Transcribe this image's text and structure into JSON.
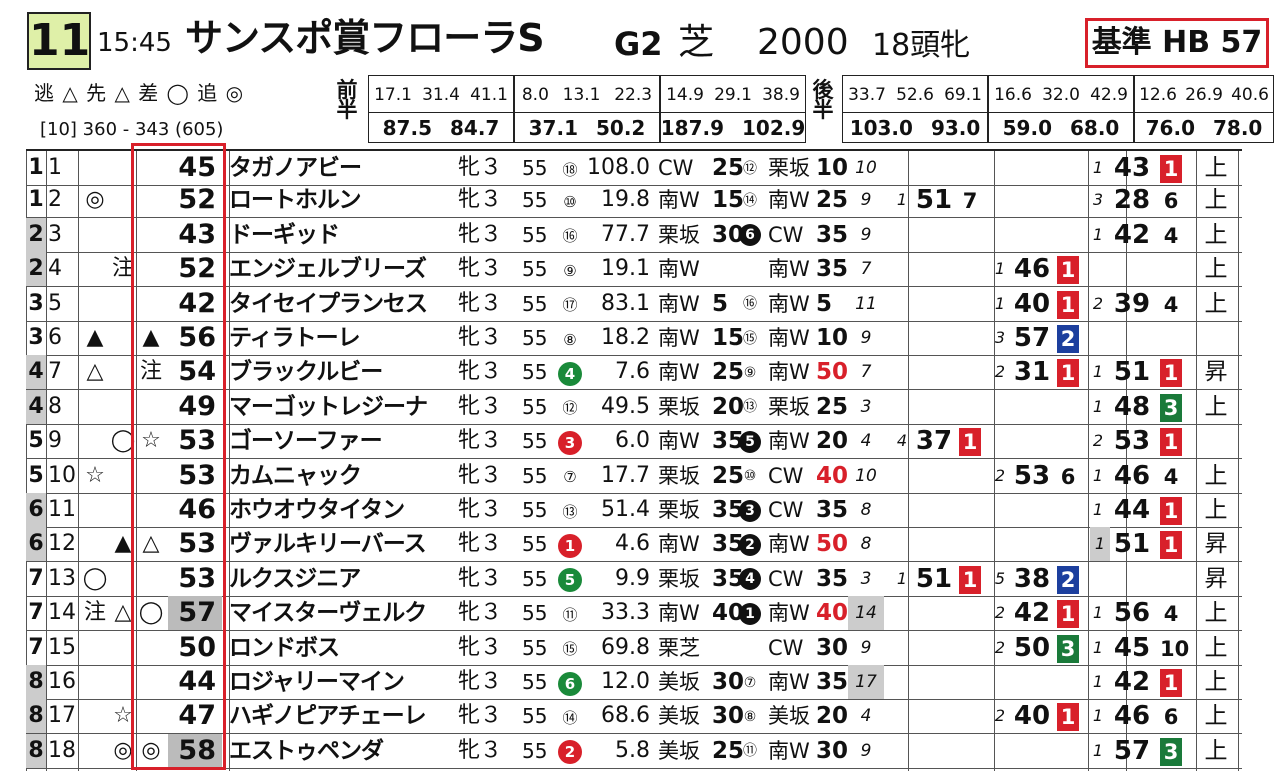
{
  "race": {
    "number": "11",
    "time": "15:45",
    "name": "サンスポ賞フローラS",
    "grade": "G2",
    "surface": "芝",
    "distance": "2000",
    "field": "18頭牝",
    "base_label": "基準 HB 57"
  },
  "legend": {
    "styles": "逃 △ 先 △ 差 ◯ 追 ◎",
    "pace": "[10]  360 - 343 (605)"
  },
  "laps": {
    "first_label": "前半",
    "second_label": "後半",
    "first": [
      {
        "top": [
          "17.1",
          "31.4",
          "41.1"
        ],
        "bottom": [
          "87.5",
          "84.7"
        ]
      },
      {
        "top": [
          "8.0",
          "13.1",
          "22.3"
        ],
        "bottom": [
          "37.1",
          "50.2"
        ]
      },
      {
        "top": [
          "14.9",
          "29.1",
          "38.9"
        ],
        "bottom": [
          "187.9",
          "102.9"
        ]
      }
    ],
    "second": [
      {
        "top": [
          "33.7",
          "52.6",
          "69.1"
        ],
        "bottom": [
          "103.0",
          "93.0"
        ]
      },
      {
        "top": [
          "16.6",
          "32.0",
          "42.9"
        ],
        "bottom": [
          "59.0",
          "68.0"
        ]
      },
      {
        "top": [
          "12.6",
          "26.9",
          "40.6"
        ],
        "bottom": [
          "76.0",
          "78.0"
        ]
      }
    ]
  },
  "horses": [
    {
      "waku": "1",
      "no": "1",
      "m1": "",
      "m2": "",
      "m3": "",
      "idx": "45",
      "name": "タガノアビー",
      "sex": "牝３",
      "wt": "55",
      "pop": "⑱",
      "odds": "108.0",
      "t1": "CW",
      "t1v": "25",
      "tn": "⑫",
      "t2": "栗坂",
      "t2v": "10",
      "rank": "10",
      "a1": "",
      "a2": "",
      "a3": "",
      "b1": "",
      "b2": "",
      "b3": "",
      "c1": "1",
      "c2": "43",
      "c3": "1",
      "c3c": "red",
      "cond": "上"
    },
    {
      "waku": "1",
      "no": "2",
      "m1": "◎",
      "m2": "",
      "m3": "",
      "idx": "52",
      "name": "ロートホルン",
      "sex": "牝３",
      "wt": "55",
      "pop": "⑩",
      "odds": "19.8",
      "t1": "南W",
      "t1v": "15",
      "tn": "⑭",
      "t2": "南W",
      "t2v": "25",
      "rank": "9",
      "a1": "1",
      "a2": "51",
      "a3": "7",
      "a3c": "none",
      "b1": "",
      "b2": "",
      "b3": "",
      "c1": "3",
      "c2": "28",
      "c3": "6",
      "c3c": "none",
      "cond": "上"
    },
    {
      "waku": "2",
      "no": "3",
      "m1": "",
      "m2": "",
      "m3": "",
      "idx": "43",
      "name": "ドーギッド",
      "sex": "牝３",
      "wt": "55",
      "pop": "⑯",
      "odds": "77.7",
      "t1": "栗坂",
      "t1v": "30",
      "tn": "6",
      "tnb": true,
      "t2": "CW",
      "t2v": "35",
      "rank": "9",
      "a1": "",
      "a2": "",
      "a3": "",
      "b1": "",
      "b2": "",
      "b3": "",
      "c1": "1",
      "c2": "42",
      "c3": "4",
      "c3c": "none",
      "cond": "上"
    },
    {
      "waku": "2",
      "no": "4",
      "m1": "",
      "m2": "注",
      "m3": "",
      "idx": "52",
      "name": "エンジェルブリーズ",
      "sex": "牝３",
      "wt": "55",
      "pop": "⑨",
      "odds": "19.1",
      "t1": "南W",
      "t1v": "",
      "tn": "",
      "t2": "南W",
      "t2v": "35",
      "rank": "7",
      "a1": "",
      "a2": "",
      "a3": "",
      "b1": "1",
      "b2": "46",
      "b3": "1",
      "b3c": "red",
      "c1": "",
      "c2": "",
      "c3": "",
      "cond": "上"
    },
    {
      "waku": "3",
      "no": "5",
      "m1": "",
      "m2": "",
      "m3": "",
      "idx": "42",
      "name": "タイセイプランセス",
      "sex": "牝３",
      "wt": "55",
      "pop": "⑰",
      "odds": "83.1",
      "t1": "南W",
      "t1v": "5",
      "tn": "⑯",
      "t2": "南W",
      "t2v": "5",
      "rank": "11",
      "a1": "",
      "a2": "",
      "a3": "",
      "b1": "1",
      "b2": "40",
      "b3": "1",
      "b3c": "red",
      "c1": "2",
      "c2": "39",
      "c3": "4",
      "c3c": "none",
      "cond": "上"
    },
    {
      "waku": "3",
      "no": "6",
      "m1": "▲",
      "m2": "",
      "m3": "▲",
      "idx": "56",
      "name": "ティラトーレ",
      "sex": "牝３",
      "wt": "55",
      "pop": "⑧",
      "odds": "18.2",
      "t1": "南W",
      "t1v": "15",
      "tn": "⑮",
      "t2": "南W",
      "t2v": "10",
      "rank": "9",
      "a1": "",
      "a2": "",
      "a3": "",
      "b1": "3",
      "b2": "57",
      "b3": "2",
      "b3c": "blue",
      "c1": "",
      "c2": "",
      "c3": "",
      "cond": ""
    },
    {
      "waku": "4",
      "no": "7",
      "m1": "△",
      "m2": "",
      "m3": "注",
      "idx": "54",
      "name": "ブラックルビー",
      "sex": "牝３",
      "wt": "55",
      "pop": "4",
      "popc": "g",
      "odds": "7.6",
      "t1": "南W",
      "t1v": "25",
      "tn": "⑨",
      "t2": "南W",
      "t2v": "50",
      "t2red": true,
      "rank": "7",
      "a1": "",
      "a2": "",
      "a3": "",
      "b1": "2",
      "b2": "31",
      "b3": "1",
      "b3c": "red",
      "c1": "1",
      "c2": "51",
      "c3": "1",
      "c3c": "red",
      "cond": "昇"
    },
    {
      "waku": "4",
      "no": "8",
      "m1": "",
      "m2": "",
      "m3": "",
      "idx": "49",
      "name": "マーゴットレジーナ",
      "sex": "牝３",
      "wt": "55",
      "pop": "⑫",
      "odds": "49.5",
      "t1": "栗坂",
      "t1v": "20",
      "tn": "⑬",
      "t2": "栗坂",
      "t2v": "25",
      "rank": "3",
      "a1": "",
      "a2": "",
      "a3": "",
      "b1": "",
      "b2": "",
      "b3": "",
      "c1": "1",
      "c2": "48",
      "c3": "3",
      "c3c": "green",
      "cond": "上"
    },
    {
      "waku": "5",
      "no": "9",
      "m1": "",
      "m2": "◯",
      "m3": "☆",
      "idx": "53",
      "name": "ゴーソーファー",
      "sex": "牝３",
      "wt": "55",
      "pop": "3",
      "popc": "r",
      "odds": "6.0",
      "t1": "南W",
      "t1v": "35",
      "tn": "5",
      "tnb": true,
      "t2": "南W",
      "t2v": "20",
      "rank": "4",
      "a1": "4",
      "a2": "37",
      "a3": "1",
      "a3c": "red",
      "b1": "",
      "b2": "",
      "b3": "",
      "c1": "2",
      "c2": "53",
      "c3": "1",
      "c3c": "red",
      "cond": ""
    },
    {
      "waku": "5",
      "no": "10",
      "m1": "☆",
      "m2": "",
      "m3": "",
      "idx": "53",
      "name": "カムニャック",
      "sex": "牝３",
      "wt": "55",
      "pop": "⑦",
      "odds": "17.7",
      "t1": "栗坂",
      "t1v": "25",
      "tn": "⑩",
      "t2": "CW",
      "t2v": "40",
      "t2red": true,
      "rank": "10",
      "a1": "",
      "a2": "",
      "a3": "",
      "b1": "2",
      "b2": "53",
      "b3": "6",
      "b3c": "none",
      "c1": "1",
      "c2": "46",
      "c3": "4",
      "c3c": "none",
      "cond": "上"
    },
    {
      "waku": "6",
      "no": "11",
      "m1": "",
      "m2": "",
      "m3": "",
      "idx": "46",
      "name": "ホウオウタイタン",
      "sex": "牝３",
      "wt": "55",
      "pop": "⑬",
      "odds": "51.4",
      "t1": "栗坂",
      "t1v": "35",
      "tn": "3",
      "tnb": true,
      "t2": "CW",
      "t2v": "35",
      "rank": "8",
      "a1": "",
      "a2": "",
      "a3": "",
      "b1": "",
      "b2": "",
      "b3": "",
      "c1": "1",
      "c2": "44",
      "c3": "1",
      "c3c": "red",
      "cond": "上"
    },
    {
      "waku": "6",
      "no": "12",
      "m1": "",
      "m2": "▲",
      "m3": "△",
      "idx": "53",
      "name": "ヴァルキリーバース",
      "sex": "牝３",
      "wt": "55",
      "pop": "1",
      "popc": "r",
      "odds": "4.6",
      "t1": "南W",
      "t1v": "35",
      "tn": "2",
      "tnb": true,
      "t2": "南W",
      "t2v": "50",
      "t2red": true,
      "rank": "8",
      "a1": "",
      "a2": "",
      "a3": "",
      "b1": "",
      "b2": "",
      "b3": "",
      "c1": "1",
      "c1s": true,
      "c2": "51",
      "c3": "1",
      "c3c": "red",
      "cond": "昇"
    },
    {
      "waku": "7",
      "no": "13",
      "m1": "◯",
      "m2": "",
      "m3": "",
      "idx": "53",
      "name": "ルクスジニア",
      "sex": "牝３",
      "wt": "55",
      "pop": "5",
      "popc": "g",
      "odds": "9.9",
      "t1": "栗坂",
      "t1v": "35",
      "tn": "4",
      "tnb": true,
      "t2": "CW",
      "t2v": "35",
      "rank": "3",
      "a1": "1",
      "a2": "51",
      "a3": "1",
      "a3c": "red",
      "b1": "5",
      "b2": "38",
      "b3": "2",
      "b3c": "blue",
      "c1": "",
      "c2": "",
      "c3": "",
      "cond": "昇"
    },
    {
      "waku": "7",
      "no": "14",
      "m1": "注",
      "m2": "△",
      "m3": "◯",
      "idx": "57",
      "idxhl": true,
      "name": "マイスターヴェルク",
      "sex": "牝３",
      "wt": "55",
      "pop": "⑪",
      "odds": "33.3",
      "t1": "南W",
      "t1v": "40",
      "tn": "1",
      "tnb": true,
      "t2": "南W",
      "t2v": "40",
      "t2red": true,
      "rank": "14",
      "rankshade": true,
      "a1": "",
      "a2": "",
      "a3": "",
      "b1": "2",
      "b2": "42",
      "b3": "1",
      "b3c": "red",
      "c1": "1",
      "c2": "56",
      "c3": "4",
      "c3c": "none",
      "cond": "上"
    },
    {
      "waku": "7",
      "no": "15",
      "m1": "",
      "m2": "",
      "m3": "",
      "idx": "50",
      "name": "ロンドボス",
      "sex": "牝３",
      "wt": "55",
      "pop": "⑮",
      "odds": "69.8",
      "t1": "栗芝",
      "t1v": "",
      "tn": "",
      "t2": "CW",
      "t2v": "30",
      "rank": "9",
      "a1": "",
      "a2": "",
      "a3": "",
      "b1": "2",
      "b2": "50",
      "b3": "3",
      "b3c": "green",
      "c1": "1",
      "c2": "45",
      "c3": "10",
      "c3c": "none",
      "cond": "上"
    },
    {
      "waku": "8",
      "no": "16",
      "m1": "",
      "m2": "",
      "m3": "",
      "idx": "44",
      "name": "ロジャリーマイン",
      "sex": "牝３",
      "wt": "55",
      "pop": "6",
      "popc": "g",
      "odds": "12.0",
      "t1": "美坂",
      "t1v": "30",
      "tn": "⑦",
      "t2": "南W",
      "t2v": "35",
      "rank": "17",
      "rankshade": true,
      "a1": "",
      "a2": "",
      "a3": "",
      "b1": "",
      "b2": "",
      "b3": "",
      "c1": "1",
      "c2": "42",
      "c3": "1",
      "c3c": "red",
      "cond": "上"
    },
    {
      "waku": "8",
      "no": "17",
      "m1": "",
      "m2": "☆",
      "m3": "",
      "idx": "47",
      "name": "ハギノピアチェーレ",
      "sex": "牝３",
      "wt": "55",
      "pop": "⑭",
      "odds": "68.6",
      "t1": "美坂",
      "t1v": "30",
      "tn": "⑧",
      "t2": "美坂",
      "t2v": "20",
      "rank": "4",
      "a1": "",
      "a2": "",
      "a3": "",
      "b1": "2",
      "b2": "40",
      "b3": "1",
      "b3c": "red",
      "c1": "1",
      "c2": "46",
      "c3": "6",
      "c3c": "none",
      "cond": "上"
    },
    {
      "waku": "8",
      "no": "18",
      "m1": "",
      "m2": "◎",
      "m3": "◎",
      "idx": "58",
      "idxhl": true,
      "name": "エストゥペンダ",
      "sex": "牝３",
      "wt": "55",
      "pop": "2",
      "popc": "r",
      "odds": "5.8",
      "t1": "美坂",
      "t1v": "25",
      "tn": "⑪",
      "t2": "南W",
      "t2v": "30",
      "rank": "9",
      "a1": "",
      "a2": "",
      "a3": "",
      "b1": "",
      "b2": "",
      "b3": "",
      "c1": "1",
      "c2": "57",
      "c3": "3",
      "c3c": "green",
      "cond": "上"
    }
  ]
}
